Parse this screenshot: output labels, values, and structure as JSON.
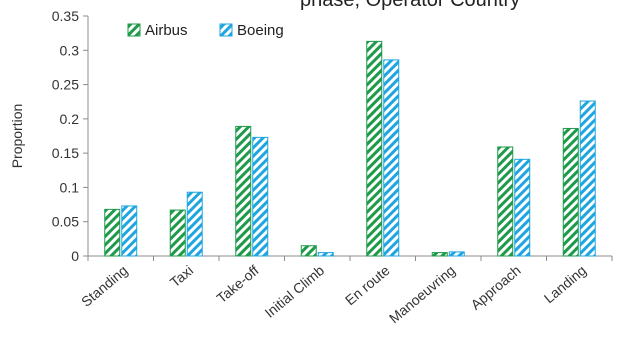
{
  "chart_data": {
    "type": "bar",
    "title": "",
    "title_fragment": "phase, Operator Country",
    "xlabel": "",
    "ylabel": "Proportion",
    "categories": [
      "Standing",
      "Taxi",
      "Take-off",
      "Initial Climb",
      "En route",
      "Manoeuvring",
      "Approach",
      "Landing"
    ],
    "series": [
      {
        "name": "Airbus",
        "color": "#1e9a4a",
        "pattern": "diagonal-hatch",
        "values": [
          0.068,
          0.067,
          0.189,
          0.015,
          0.313,
          0.005,
          0.159,
          0.186
        ]
      },
      {
        "name": "Boeing",
        "color": "#1fa5e0",
        "pattern": "diagonal-hatch",
        "values": [
          0.073,
          0.093,
          0.173,
          0.005,
          0.286,
          0.006,
          0.141,
          0.226
        ]
      }
    ],
    "ylim": [
      0,
      0.35
    ],
    "yticks": [
      0,
      0.05,
      0.1,
      0.15,
      0.2,
      0.25,
      0.3,
      0.35
    ],
    "ytick_labels": [
      "0",
      "0.05",
      "0.1",
      "0.15",
      "0.2",
      "0.25",
      "0.3",
      "0.35"
    ],
    "grid": false,
    "legend_position": "top-left"
  }
}
